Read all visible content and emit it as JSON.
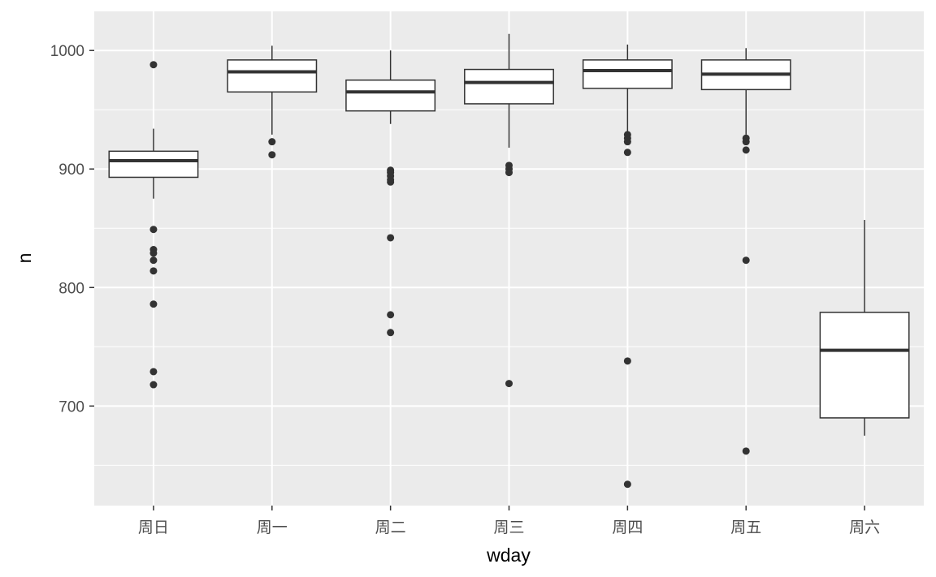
{
  "chart_data": {
    "type": "boxplot",
    "title": "",
    "xlabel": "wday",
    "ylabel": "n",
    "ylim": [
      616,
      1033
    ],
    "yticks": [
      700,
      800,
      900,
      1000
    ],
    "yminor": [
      650,
      750,
      850,
      950
    ],
    "grid": true,
    "categories": [
      "周日",
      "周一",
      "周二",
      "周三",
      "周四",
      "周五",
      "周六"
    ],
    "boxes": [
      {
        "category": "周日",
        "whisker_low": 875,
        "q1": 893,
        "median": 907,
        "q3": 915,
        "whisker_high": 934,
        "outliers": [
          988,
          849,
          832,
          829,
          823,
          814,
          786,
          729,
          718
        ]
      },
      {
        "category": "周一",
        "whisker_low": 929,
        "q1": 965,
        "median": 982,
        "q3": 992,
        "whisker_high": 1004,
        "outliers": [
          923,
          912
        ]
      },
      {
        "category": "周二",
        "whisker_low": 938,
        "q1": 949,
        "median": 965,
        "q3": 975,
        "whisker_high": 1000,
        "outliers": [
          899,
          897,
          894,
          891,
          889,
          842,
          777,
          762
        ]
      },
      {
        "category": "周三",
        "whisker_low": 918,
        "q1": 955,
        "median": 973,
        "q3": 984,
        "whisker_high": 1014,
        "outliers": [
          903,
          900,
          897,
          719
        ]
      },
      {
        "category": "周四",
        "whisker_low": 932,
        "q1": 968,
        "median": 983,
        "q3": 992,
        "whisker_high": 1005,
        "outliers": [
          929,
          926,
          923,
          914,
          738,
          634
        ]
      },
      {
        "category": "周五",
        "whisker_low": 929,
        "q1": 967,
        "median": 980,
        "q3": 992,
        "whisker_high": 1002,
        "outliers": [
          926,
          923,
          916,
          823,
          662
        ]
      },
      {
        "category": "周六",
        "whisker_low": 675,
        "q1": 690,
        "median": 747,
        "q3": 779,
        "whisker_high": 857,
        "outliers": []
      }
    ],
    "colors": {
      "panel": "#ebebeb",
      "grid": "#ffffff",
      "box_fill": "#ffffff",
      "box_line": "#333333"
    }
  }
}
